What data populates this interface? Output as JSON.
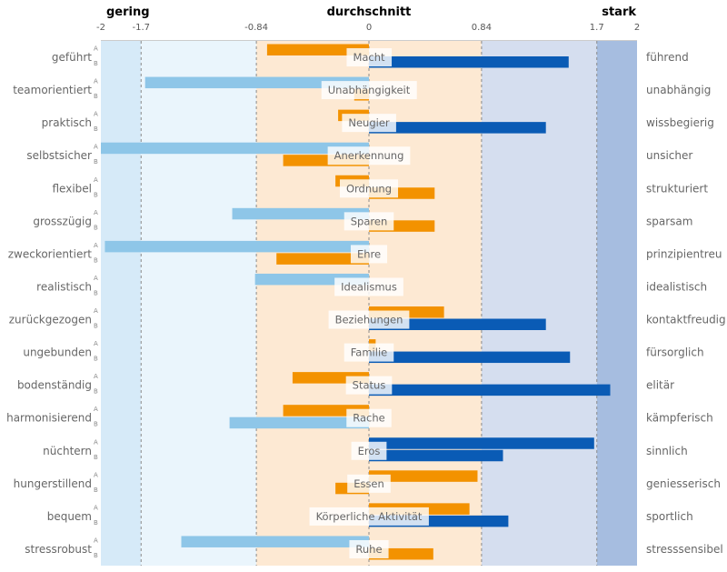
{
  "chart_data": {
    "type": "bar",
    "orientation": "horizontal-diverging",
    "header": {
      "left": "gering",
      "center": "durchschnitt",
      "right": "stark"
    },
    "colors": {
      "low": "#8ec6e8",
      "mid": "#f39200",
      "high": "#0a5bb5",
      "band_low_outer": "#d6eaf8",
      "band_low_inner": "#eaf5fc",
      "band_mid": "#fde9d3",
      "band_high_inner": "#d5deef",
      "band_high_outer": "#a6bde0",
      "header_low": "#8ec6e8",
      "header_mid": "#f39200",
      "header_high": "#0a4e9b"
    },
    "xlim": [
      -2,
      2
    ],
    "ticks": [
      {
        "value": -2,
        "label": "-2"
      },
      {
        "value": -1.7,
        "label": "-1.7"
      },
      {
        "value": -0.84,
        "label": "-0.84"
      },
      {
        "value": 0,
        "label": "0"
      },
      {
        "value": 0.84,
        "label": "0.84"
      },
      {
        "value": 1.7,
        "label": "1.7"
      },
      {
        "value": 2,
        "label": "2"
      }
    ],
    "series_labels": [
      "A",
      "B"
    ],
    "rows": [
      {
        "category": "Macht",
        "left": "geführt",
        "right": "führend",
        "A": -0.76,
        "B": 1.49
      },
      {
        "category": "Unabhängigkeit",
        "left": "teamorientiert",
        "right": "unabhängig",
        "A": -1.67,
        "B": -0.11
      },
      {
        "category": "Neugier",
        "left": "praktisch",
        "right": "wissbegierig",
        "A": -0.23,
        "B": 1.32
      },
      {
        "category": "Anerkennung",
        "left": "selbstsicher",
        "right": "unsicher",
        "A": -2.0,
        "B": -0.64
      },
      {
        "category": "Ordnung",
        "left": "flexibel",
        "right": "strukturiert",
        "A": -0.25,
        "B": 0.49
      },
      {
        "category": "Sparen",
        "left": "grosszügig",
        "right": "sparsam",
        "A": -1.02,
        "B": 0.49
      },
      {
        "category": "Ehre",
        "left": "zweckorientiert",
        "right": "prinzipientreu",
        "A": -1.97,
        "B": -0.69
      },
      {
        "category": "Idealismus",
        "left": "realistisch",
        "right": "idealistisch",
        "A": -0.85,
        "B": 0
      },
      {
        "category": "Beziehungen",
        "left": "zurückgezogen",
        "right": "kontaktfreudig",
        "A": 0.56,
        "B": 1.32
      },
      {
        "category": "Familie",
        "left": "ungebunden",
        "right": "fürsorglich",
        "A": 0.05,
        "B": 1.5
      },
      {
        "category": "Status",
        "left": "bodenständig",
        "right": "elitär",
        "A": -0.57,
        "B": 1.8
      },
      {
        "category": "Rache",
        "left": "harmonisierend",
        "right": "kämpferisch",
        "A": -0.64,
        "B": -1.04
      },
      {
        "category": "Eros",
        "left": "nüchtern",
        "right": "sinnlich",
        "A": 1.68,
        "B": 1.0
      },
      {
        "category": "Essen",
        "left": "hungerstillend",
        "right": "geniesserisch",
        "A": 0.81,
        "B": -0.25
      },
      {
        "category": "Körperliche Aktivität",
        "left": "bequem",
        "right": "sportlich",
        "A": 0.75,
        "B": 1.04
      },
      {
        "category": "Ruhe",
        "left": "stressrobust",
        "right": "stresssensibel",
        "A": -1.4,
        "B": 0.48
      }
    ]
  }
}
